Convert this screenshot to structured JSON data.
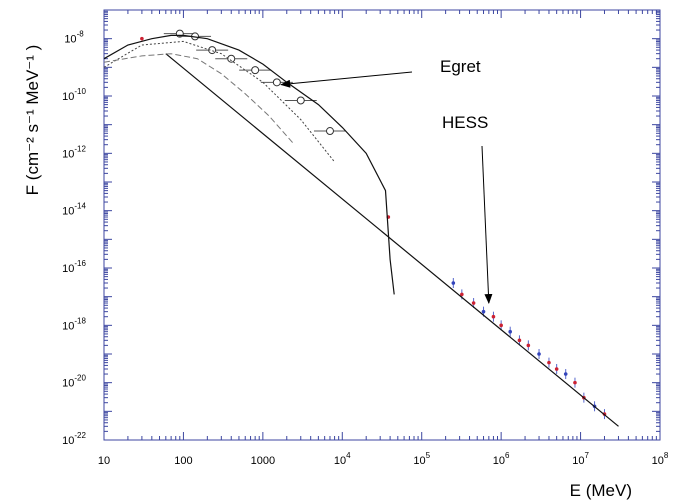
{
  "chart_data": {
    "type": "scatter",
    "title": "",
    "xlabel": "E (MeV)",
    "ylabel": "F (cm⁻² s⁻¹ MeV⁻¹ )",
    "x_scale": "log",
    "y_scale": "log",
    "xlim": [
      10,
      100000000
    ],
    "ylim": [
      1e-22,
      1e-07
    ],
    "x_ticks": [
      {
        "value": 10,
        "label": "10"
      },
      {
        "value": 100,
        "label": "100"
      },
      {
        "value": 1000,
        "label": "1000"
      },
      {
        "value": 10000,
        "base": "10",
        "exp": "4"
      },
      {
        "value": 100000,
        "base": "10",
        "exp": "5"
      },
      {
        "value": 1000000,
        "base": "10",
        "exp": "6"
      },
      {
        "value": 10000000,
        "base": "10",
        "exp": "7"
      },
      {
        "value": 100000000,
        "base": "10",
        "exp": "8"
      }
    ],
    "y_ticks": [
      {
        "value": 1e-08,
        "base": "10",
        "exp": "-8"
      },
      {
        "value": 1e-10,
        "base": "10",
        "exp": "-10"
      },
      {
        "value": 1e-12,
        "base": "10",
        "exp": "-12"
      },
      {
        "value": 1e-14,
        "base": "10",
        "exp": "-14"
      },
      {
        "value": 1e-16,
        "base": "10",
        "exp": "-16"
      },
      {
        "value": 1e-18,
        "base": "10",
        "exp": "-18"
      },
      {
        "value": 1e-20,
        "base": "10",
        "exp": "-20"
      },
      {
        "value": 1e-22,
        "base": "10",
        "exp": "-22"
      }
    ],
    "grid": false,
    "annotations": [
      {
        "text": "Egret",
        "arrow_to": [
          1700,
          2.5e-10
        ]
      },
      {
        "text": "HESS",
        "arrow_to": [
          700000,
          6e-18
        ]
      }
    ],
    "series": [
      {
        "style": "egret-points",
        "marker": "open-circle",
        "color": "#333333",
        "x": [
          90,
          140,
          230,
          400,
          800,
          1500,
          3000,
          7000
        ],
        "y": [
          1.5e-08,
          1.2e-08,
          4e-09,
          2e-09,
          8e-10,
          3e-10,
          7e-11,
          6e-12
        ]
      },
      {
        "style": "hess-points",
        "marker": "dot",
        "color": "#cc2233",
        "x": [
          250000,
          320000,
          450000,
          600000,
          800000,
          1000000,
          1300000,
          1700000,
          2200000,
          3000000,
          4000000,
          5000000,
          6500000,
          8500000,
          11000000,
          15000000,
          20000000
        ],
        "y": [
          3e-17,
          1.2e-17,
          6e-18,
          3e-18,
          2e-18,
          1e-18,
          6e-19,
          3e-19,
          2e-19,
          1e-19,
          5e-20,
          3e-20,
          2e-20,
          1e-20,
          3e-21,
          1.5e-21,
          8e-22
        ]
      },
      {
        "style": "low-energy-points",
        "marker": "dot",
        "color": "#cc2233",
        "x": [
          30,
          38000
        ],
        "y": [
          1e-08,
          6e-15
        ]
      },
      {
        "style": "solid-power-law",
        "color": "#111111",
        "x": [
          60,
          30000000
        ],
        "y": [
          3e-09,
          3e-22
        ]
      },
      {
        "style": "solid-total-model",
        "color": "#111111",
        "x": [
          10,
          20,
          40,
          70,
          100,
          200,
          500,
          1000,
          2000,
          5000,
          10000,
          20000,
          35000,
          40000,
          45000
        ],
        "y": [
          2e-09,
          6e-09,
          1e-08,
          1.3e-08,
          1.3e-08,
          1e-08,
          4e-09,
          1.3e-09,
          3e-10,
          5e-11,
          8e-12,
          1e-12,
          5e-14,
          2e-16,
          1.2e-17
        ]
      },
      {
        "style": "dotted-model",
        "color": "#444444",
        "x": [
          10,
          30,
          100,
          300,
          1000,
          3000,
          8000
        ],
        "y": [
          1e-09,
          6e-09,
          8e-09,
          3e-09,
          3e-10,
          1.5e-11,
          5e-13
        ]
      },
      {
        "style": "dashed-model",
        "color": "#777777",
        "x": [
          10,
          30,
          70,
          150,
          300,
          600,
          1200,
          2500
        ],
        "y": [
          1.5e-09,
          2.5e-09,
          3e-09,
          2e-09,
          6e-10,
          1.2e-10,
          2e-11,
          2e-12
        ]
      }
    ]
  }
}
